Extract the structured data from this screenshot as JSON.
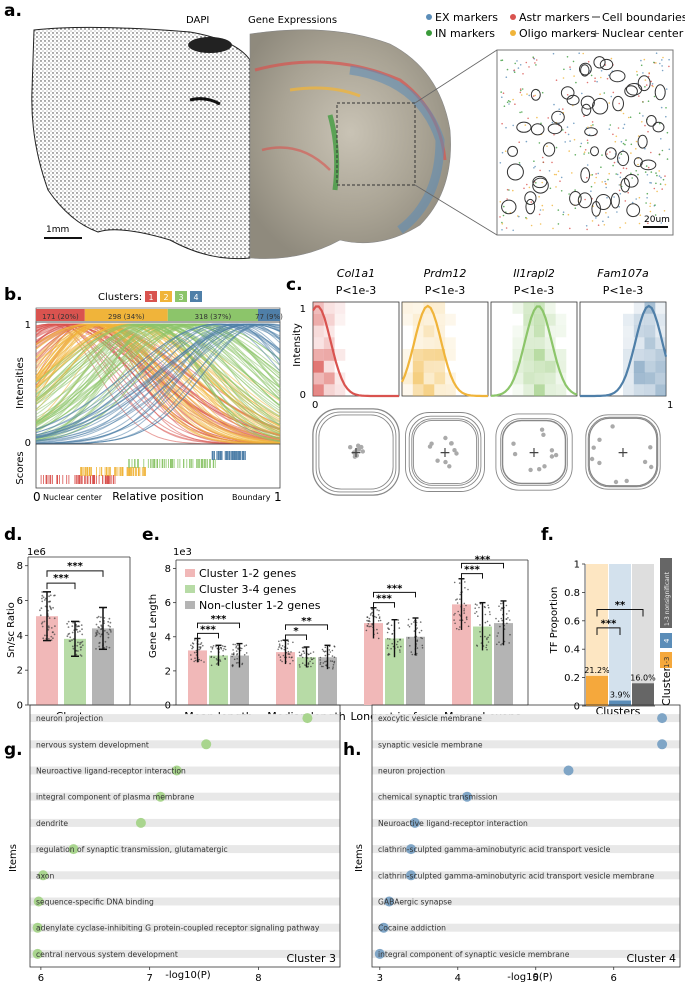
{
  "panel_letters": {
    "a": "a.",
    "b": "b.",
    "c": "c.",
    "d": "d.",
    "e": "e.",
    "f": "f.",
    "g": "g.",
    "h": "h."
  },
  "panel_a": {
    "dapi_title": "DAPI",
    "gene_title": "Gene Expressions",
    "scale_left": "1mm",
    "scale_inset": "20um",
    "legend": [
      {
        "label": "EX markers",
        "symbol": "dot",
        "color": "#5b8db8"
      },
      {
        "label": "Astr markers",
        "symbol": "dot",
        "color": "#d9534f"
      },
      {
        "label": "Cell boundaries",
        "symbol": "line",
        "color": "#555555"
      },
      {
        "label": "IN markers",
        "symbol": "dot",
        "color": "#3a9a3a"
      },
      {
        "label": "Oligo markers",
        "symbol": "dot",
        "color": "#f0b43a"
      },
      {
        "label": "Nuclear center",
        "symbol": "plus",
        "color": "#555555"
      }
    ]
  },
  "panel_b": {
    "clusters_label": "Clusters:",
    "cluster_ids": [
      "1",
      "2",
      "3",
      "4"
    ],
    "cluster_colors": [
      "#d9534f",
      "#f0b43a",
      "#8cc56a",
      "#4f7fa8"
    ],
    "bar_labels": [
      "171 (20%)",
      "298 (34%)",
      "318 (37%)",
      "77 (9%)"
    ],
    "bar_fractions": [
      0.2,
      0.34,
      0.37,
      0.09
    ],
    "ylabel": "Intensities",
    "ytick_top": "1",
    "ytick_bottom": "0",
    "scores_label": "Scores",
    "x_left_num": "0",
    "x_left_text": "Nuclear center",
    "xlabel": "Relative position",
    "x_right_text": "Boundary",
    "x_right_num": "1"
  },
  "panel_c": {
    "ylabel": "Intensity",
    "ytick_top": "1",
    "ytick_bottom": "0",
    "xtick_left": "0",
    "xtick_right": "1",
    "genes": [
      {
        "name": "Col1a1",
        "p": "P<1e-3",
        "color": "#d9534f",
        "peak": 0.05
      },
      {
        "name": "Prdm12",
        "p": "P<1e-3",
        "color": "#f0b43a",
        "peak": 0.3
      },
      {
        "name": "Il1rapl2",
        "p": "P<1e-3",
        "color": "#8cc56a",
        "peak": 0.55
      },
      {
        "name": "Fam107a",
        "p": "P<1e-3",
        "color": "#4f7fa8",
        "peak": 0.8
      }
    ]
  },
  "panel_d": {
    "scale": "1e6",
    "ylabel": "Sn/sc Ratio",
    "xlabel": "Clusters",
    "yticks": [
      "0",
      "2",
      "4",
      "6",
      "8"
    ],
    "ylim": [
      0,
      8.5
    ],
    "bars": [
      {
        "name": "Cluster 1-2 genes",
        "value": 5.1,
        "err": 1.4,
        "color": "#f1b8b8"
      },
      {
        "name": "Cluster 3-4 genes",
        "value": 3.8,
        "err": 1.0,
        "color": "#b7dba6"
      },
      {
        "name": "Non-cluster 1-2 genes",
        "value": 4.4,
        "err": 1.2,
        "color": "#b4b4b4"
      }
    ],
    "sig": [
      "***",
      "***"
    ]
  },
  "panel_e": {
    "scale": "1e3",
    "ylabel": "Gene Length",
    "yticks": [
      "0",
      "2",
      "4",
      "6",
      "8"
    ],
    "ylim": [
      0,
      8.5
    ],
    "legend": [
      "Cluster 1-2 genes",
      "Cluster 3-4 genes",
      "Non-cluster 1-2 genes"
    ],
    "colors": [
      "#f1b8b8",
      "#b7dba6",
      "#b4b4b4"
    ],
    "groups": [
      {
        "label": "Mean length",
        "values": [
          3.2,
          2.9,
          2.9
        ],
        "errs": [
          0.7,
          0.6,
          0.7
        ],
        "sig": [
          "***",
          "***"
        ]
      },
      {
        "label": "Median length",
        "values": [
          3.1,
          2.8,
          2.8
        ],
        "errs": [
          0.7,
          0.6,
          0.7
        ],
        "sig": [
          "*",
          "**"
        ]
      },
      {
        "label": "Longest isoform",
        "values": [
          4.8,
          3.9,
          4.0
        ],
        "errs": [
          0.9,
          1.1,
          1.1
        ],
        "sig": [
          "***",
          "***"
        ]
      },
      {
        "label": "Merged exons",
        "values": [
          5.9,
          4.6,
          4.8
        ],
        "errs": [
          1.5,
          1.4,
          1.3
        ],
        "sig": [
          "***",
          "***"
        ]
      }
    ]
  },
  "panel_f": {
    "ylabel": "TF Proportion",
    "xlabel": "Clusters",
    "yticks": [
      "0",
      "0.2",
      "0.4",
      "0.6",
      "0.8",
      "1"
    ],
    "bars": [
      {
        "label": "21.2%",
        "value": 0.212,
        "color": "#f5a83c",
        "bg": "#fde6c2"
      },
      {
        "label": "3.9%",
        "value": 0.039,
        "color": "#5b8db8",
        "bg": "#d3e1ed"
      },
      {
        "label": "16.0%",
        "value": 0.16,
        "color": "#666666",
        "bg": "#dedede"
      }
    ],
    "sig": [
      "***",
      "**"
    ],
    "legend_title": "Clusters:",
    "legend": [
      {
        "label": "1-3",
        "color": "#f5a83c"
      },
      {
        "label": "4",
        "color": "#5b8db8"
      },
      {
        "label": "1-3 nonsignificant",
        "color": "#666666"
      }
    ]
  },
  "panel_g": {
    "ylabel": "Items",
    "xlabel": "-log10(P)",
    "tag": "Cluster 3",
    "xticks": [
      "6",
      "7",
      "8"
    ],
    "xlim": [
      5.9,
      8.75
    ],
    "dot_color": "#a9d58e",
    "terms": [
      {
        "name": "neuron projection",
        "value": 8.45
      },
      {
        "name": "nervous system development",
        "value": 7.52
      },
      {
        "name": "Neuroactive ligand-receptor interaction",
        "value": 7.25
      },
      {
        "name": "integral component of plasma membrane",
        "value": 7.1
      },
      {
        "name": "dendrite",
        "value": 6.92
      },
      {
        "name": "regulation of synaptic transmission, glutamatergic",
        "value": 6.3
      },
      {
        "name": "axon",
        "value": 6.02
      },
      {
        "name": "sequence-specific DNA binding",
        "value": 5.98
      },
      {
        "name": "adenylate cyclase-inhibiting G protein-coupled receptor signaling pathway",
        "value": 5.97
      },
      {
        "name": "central nervous system development",
        "value": 5.97
      }
    ]
  },
  "panel_h": {
    "ylabel": "Items",
    "xlabel": "-log10(P)",
    "tag": "Cluster 4",
    "xticks": [
      "3",
      "4",
      "5",
      "6"
    ],
    "xlim": [
      2.9,
      6.85
    ],
    "dot_color": "#7fa5c6",
    "terms": [
      {
        "name": "exocytic vesicle membrane",
        "value": 6.62
      },
      {
        "name": "synaptic vesicle membrane",
        "value": 6.62
      },
      {
        "name": "neuron projection",
        "value": 5.42
      },
      {
        "name": "chemical synaptic transmission",
        "value": 4.12
      },
      {
        "name": "Neuroactive ligand-receptor interaction",
        "value": 3.45
      },
      {
        "name": "clathrin-sculpted gamma-aminobutyric acid transport vesicle",
        "value": 3.4
      },
      {
        "name": "clathrin-sculpted gamma-aminobutyric acid transport vesicle membrane",
        "value": 3.4
      },
      {
        "name": "GABAergic synapse",
        "value": 3.12
      },
      {
        "name": "Cocaine addiction",
        "value": 3.05
      },
      {
        "name": "integral component of synaptic vesicle membrane",
        "value": 3.0
      }
    ]
  }
}
